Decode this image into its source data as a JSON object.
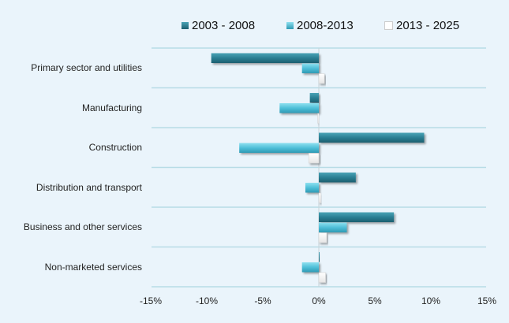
{
  "chart_data": {
    "type": "bar",
    "orientation": "horizontal",
    "title": "",
    "xlabel": "",
    "ylabel": "",
    "categories": [
      "Primary sector and utilities",
      "Manufacturing",
      "Construction",
      "Distribution and transport",
      "Business and other services",
      "Non-marketed services"
    ],
    "series": [
      {
        "name": "2003 - 2008",
        "color": "#2a7f93",
        "values": [
          -9.6,
          -0.8,
          9.4,
          3.3,
          6.7,
          0.0
        ]
      },
      {
        "name": "2008-2013",
        "color": "#4fbfd8",
        "values": [
          -1.5,
          -3.5,
          -7.1,
          -1.2,
          2.5,
          -1.5
        ]
      },
      {
        "name": "2013 - 2025",
        "color": "#ffffff",
        "values": [
          0.5,
          -0.1,
          -0.9,
          0.2,
          0.7,
          0.6
        ]
      }
    ],
    "xlim": [
      -15,
      15
    ],
    "xticks": [
      -15,
      -10,
      -5,
      0,
      5,
      10,
      15
    ],
    "xtick_labels": [
      "-15%",
      "-10%",
      "-5%",
      "0%",
      "5%",
      "10%",
      "15%"
    ],
    "grid": true,
    "legend_position": "top"
  }
}
